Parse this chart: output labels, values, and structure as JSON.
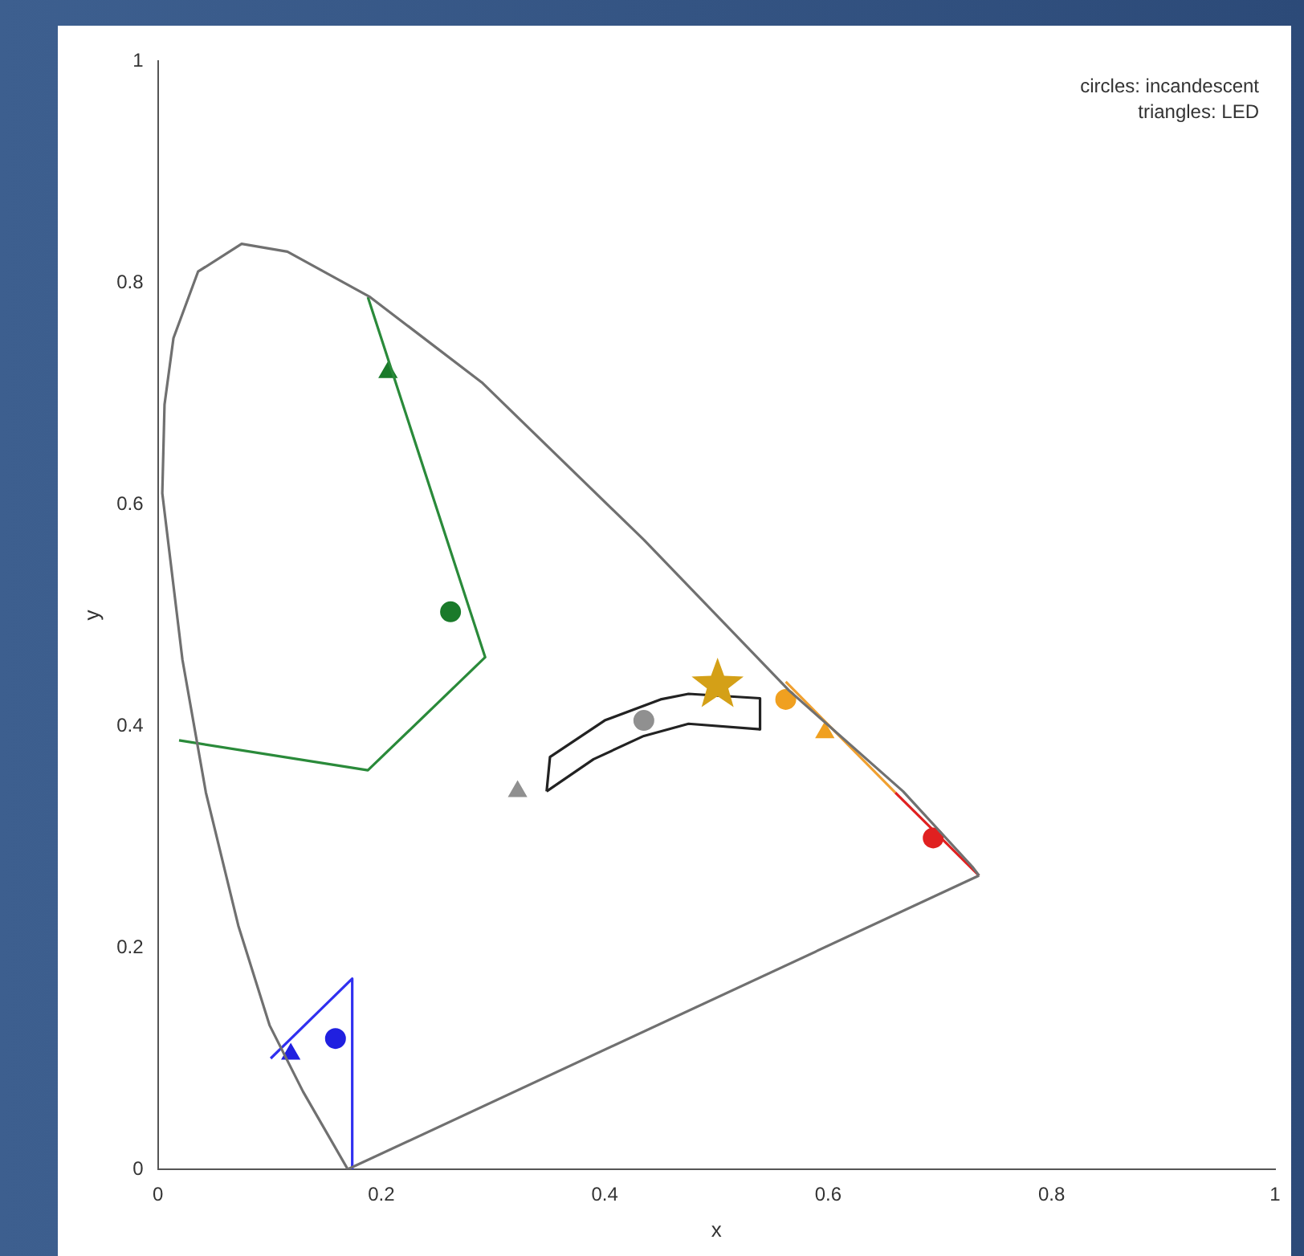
{
  "chart_data": {
    "type": "scatter",
    "xlabel": "x",
    "ylabel": "y",
    "xlim": [
      0,
      1
    ],
    "ylim": [
      0,
      1
    ],
    "xticks": [
      0,
      0.2,
      0.4,
      0.6,
      0.8,
      1
    ],
    "yticks": [
      0,
      0.2,
      0.4,
      0.6,
      0.8,
      1
    ],
    "grid": false,
    "legend": false,
    "annotations": [
      "circles: incandescent",
      "triangles: LED"
    ],
    "series": [
      {
        "type": "line",
        "color": "#707070",
        "x": [
          0.17,
          0.13,
          0.1,
          0.072,
          0.043,
          0.022,
          0.004,
          0.006,
          0.014,
          0.036,
          0.075,
          0.116,
          0.19,
          0.29,
          0.435,
          0.565,
          0.667,
          0.729,
          0.735
        ],
        "values": [
          0,
          0.07,
          0.13,
          0.22,
          0.34,
          0.46,
          0.61,
          0.69,
          0.75,
          0.81,
          0.835,
          0.828,
          0.787,
          0.71,
          0.568,
          0.432,
          0.341,
          0.273,
          0.265
        ]
      },
      {
        "type": "line",
        "color": "#707070",
        "x": [
          0.17,
          0.735
        ],
        "values": [
          0,
          0.265
        ]
      },
      {
        "type": "line",
        "color": "#2a8a3a",
        "x": [
          0.188,
          0.293,
          0.188,
          0.019
        ],
        "values": [
          0.787,
          0.462,
          0.36,
          0.387
        ]
      },
      {
        "type": "line",
        "color": "#3030f0",
        "x": [
          0.101,
          0.174,
          0.174
        ],
        "values": [
          0.1,
          0.172,
          0
        ]
      },
      {
        "type": "line",
        "color": "#222222",
        "x": [
          0.348,
          0.351,
          0.4,
          0.45,
          0.475,
          0.539,
          0.539
        ],
        "values": [
          0.341,
          0.372,
          0.405,
          0.424,
          0.429,
          0.425,
          0.397
        ]
      },
      {
        "type": "line",
        "color": "#222222",
        "x": [
          0.348,
          0.39,
          0.435,
          0.475,
          0.539
        ],
        "values": [
          0.341,
          0.37,
          0.391,
          0.402,
          0.397
        ]
      },
      {
        "type": "line",
        "color": "#f0a030",
        "x": [
          0.562,
          0.66
        ],
        "values": [
          0.44,
          0.34
        ]
      },
      {
        "type": "line",
        "color": "#e02020",
        "x": [
          0.66,
          0.735
        ],
        "values": [
          0.34,
          0.265
        ]
      },
      {
        "type": "scatter",
        "marker": "triangle",
        "color": "#1a7a2a",
        "x": [
          0.206
        ],
        "values": [
          0.719
        ]
      },
      {
        "type": "scatter",
        "marker": "circle",
        "color": "#1a7a2a",
        "x": [
          0.262
        ],
        "values": [
          0.503
        ]
      },
      {
        "type": "scatter",
        "marker": "triangle",
        "color": "#2020e0",
        "x": [
          0.119
        ],
        "values": [
          0.104
        ]
      },
      {
        "type": "scatter",
        "marker": "circle",
        "color": "#2020e0",
        "x": [
          0.159
        ],
        "values": [
          0.118
        ]
      },
      {
        "type": "scatter",
        "marker": "triangle",
        "color": "#909090",
        "x": [
          0.322
        ],
        "values": [
          0.341
        ]
      },
      {
        "type": "scatter",
        "marker": "circle",
        "color": "#909090",
        "x": [
          0.435
        ],
        "values": [
          0.405
        ]
      },
      {
        "type": "scatter",
        "marker": "circle",
        "color": "#f0a020",
        "x": [
          0.562
        ],
        "values": [
          0.424
        ]
      },
      {
        "type": "scatter",
        "marker": "triangle",
        "color": "#f0a020",
        "x": [
          0.597
        ],
        "values": [
          0.394
        ]
      },
      {
        "type": "scatter",
        "marker": "circle",
        "color": "#e02020",
        "x": [
          0.694
        ],
        "values": [
          0.299
        ]
      },
      {
        "type": "scatter",
        "marker": "star",
        "color": "#d4a017",
        "x": [
          0.501
        ],
        "values": [
          0.437
        ]
      }
    ]
  }
}
